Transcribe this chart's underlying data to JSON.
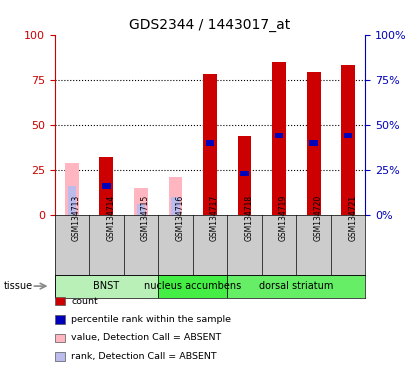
{
  "title": "GDS2344 / 1443017_at",
  "samples": [
    "GSM134713",
    "GSM134714",
    "GSM134715",
    "GSM134716",
    "GSM134717",
    "GSM134718",
    "GSM134719",
    "GSM134720",
    "GSM134721"
  ],
  "tissues": [
    {
      "label": "BNST",
      "start": 0,
      "end": 3,
      "color": "#B8F0B8"
    },
    {
      "label": "nucleus accumbens",
      "start": 3,
      "end": 5,
      "color": "#44EE44"
    },
    {
      "label": "dorsal striatum",
      "start": 5,
      "end": 9,
      "color": "#66EE66"
    }
  ],
  "count_red": [
    0,
    32,
    0,
    0,
    78,
    44,
    85,
    79,
    83
  ],
  "count_pink": [
    29,
    0,
    15,
    21,
    0,
    0,
    0,
    0,
    0
  ],
  "rank_blue": [
    16,
    16,
    6,
    10,
    40,
    23,
    44,
    40,
    44
  ],
  "rank_lightblue": [
    16,
    0,
    6,
    10,
    0,
    0,
    0,
    0,
    0
  ],
  "absent_flags": [
    true,
    false,
    true,
    true,
    false,
    false,
    false,
    false,
    false
  ],
  "ylim": [
    0,
    100
  ],
  "red_color": "#CC0000",
  "pink_color": "#FFB6C1",
  "blue_color": "#0000BB",
  "lightblue_color": "#BBBBEE",
  "axis_left_color": "#CC0000",
  "axis_right_color": "#0000BB",
  "bar_width": 0.4,
  "blue_bar_width": 0.25,
  "blue_bar_height": 3,
  "legend_items": [
    {
      "label": "count",
      "color": "#CC0000"
    },
    {
      "label": "percentile rank within the sample",
      "color": "#0000BB"
    },
    {
      "label": "value, Detection Call = ABSENT",
      "color": "#FFB6C1"
    },
    {
      "label": "rank, Detection Call = ABSENT",
      "color": "#BBBBEE"
    }
  ]
}
